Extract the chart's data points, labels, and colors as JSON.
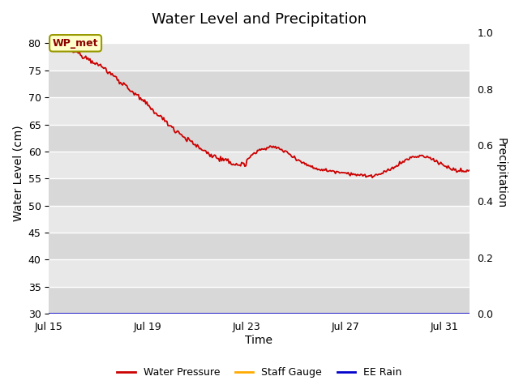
{
  "title": "Water Level and Precipitation",
  "xlabel": "Time",
  "ylabel_left": "Water Level (cm)",
  "ylabel_right": "Precipitation",
  "ylim_left": [
    30,
    82
  ],
  "ylim_right": [
    0.0,
    1.0
  ],
  "yticks_left": [
    30,
    35,
    40,
    45,
    50,
    55,
    60,
    65,
    70,
    75,
    80
  ],
  "yticks_right": [
    0.0,
    0.2,
    0.4,
    0.6,
    0.8,
    1.0
  ],
  "xtick_labels": [
    "Jul 15",
    "Jul 19",
    "Jul 23",
    "Jul 27",
    "Jul 31"
  ],
  "xtick_positions": [
    0,
    4,
    8,
    12,
    16
  ],
  "xlim": [
    0,
    17
  ],
  "annotation_text": "WP_met",
  "bg_color_dark": "#d8d8d8",
  "bg_color_light": "#e8e8e8",
  "line_color_wp": "#cc0000",
  "line_color_sg": "#ffaa00",
  "line_color_rain": "#0000cc",
  "legend_labels": [
    "Water Pressure",
    "Staff Gauge",
    "EE Rain"
  ],
  "title_fontsize": 13,
  "axis_label_fontsize": 10,
  "tick_fontsize": 9,
  "band_yticks": [
    30,
    35,
    40,
    45,
    50,
    55,
    60,
    65,
    70,
    75,
    80
  ]
}
